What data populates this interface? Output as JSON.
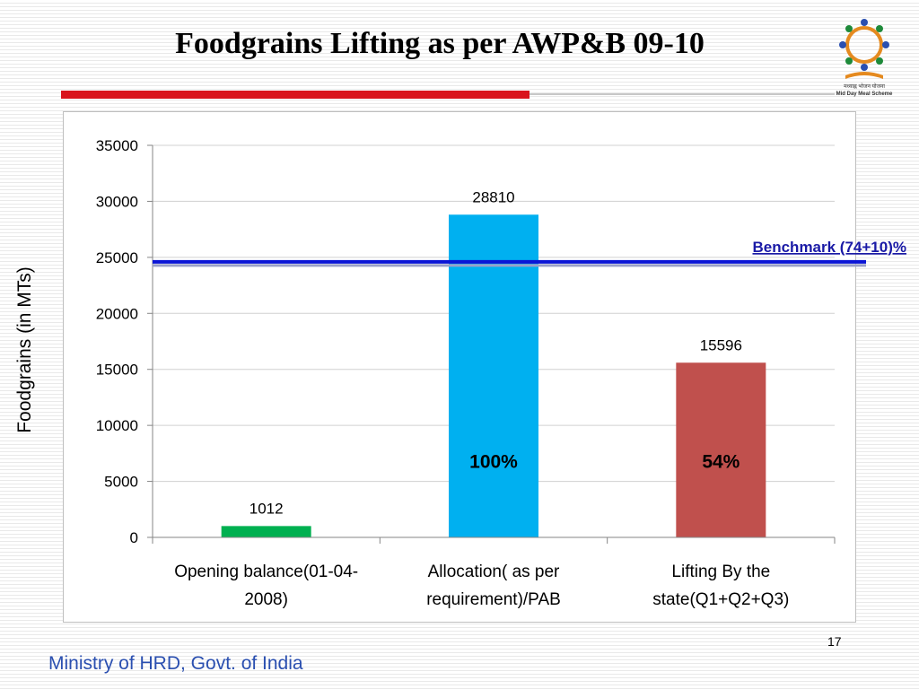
{
  "slide": {
    "title": "Foodgrains Lifting as per AWP&B 09-10",
    "footer": "Ministry of HRD, Govt. of India",
    "page_number": "17",
    "logo_caption_line1": "मध्याह्न भोजन योजना",
    "logo_caption_line2": "Mid Day Meal Scheme"
  },
  "colors": {
    "title_rule": "#d9141c",
    "footer_text": "#2a4fb0",
    "benchmark": "#0a14d6",
    "benchmark_label": "#1a1aa6",
    "bars": [
      "#00b050",
      "#00b0f0",
      "#c0504d"
    ]
  },
  "chart_data": {
    "type": "bar",
    "title": "",
    "xlabel": "",
    "ylabel": "Foodgrains (in MTs)",
    "ylim": [
      0,
      35000
    ],
    "y_ticks": [
      0,
      5000,
      10000,
      15000,
      20000,
      25000,
      30000,
      35000
    ],
    "grid": true,
    "categories": [
      [
        "Opening balance(01-04-",
        "2008)"
      ],
      [
        "Allocation( as per",
        "requirement)/PAB"
      ],
      [
        "Lifting By the",
        "state(Q1+Q2+Q3)"
      ]
    ],
    "values": [
      1012,
      28810,
      15596
    ],
    "data_labels": [
      "1012",
      "28810",
      "15596"
    ],
    "percent_labels": [
      "",
      "100%",
      "54%"
    ],
    "benchmark": {
      "label": "Benchmark (74+10)%",
      "value": 24600
    }
  }
}
